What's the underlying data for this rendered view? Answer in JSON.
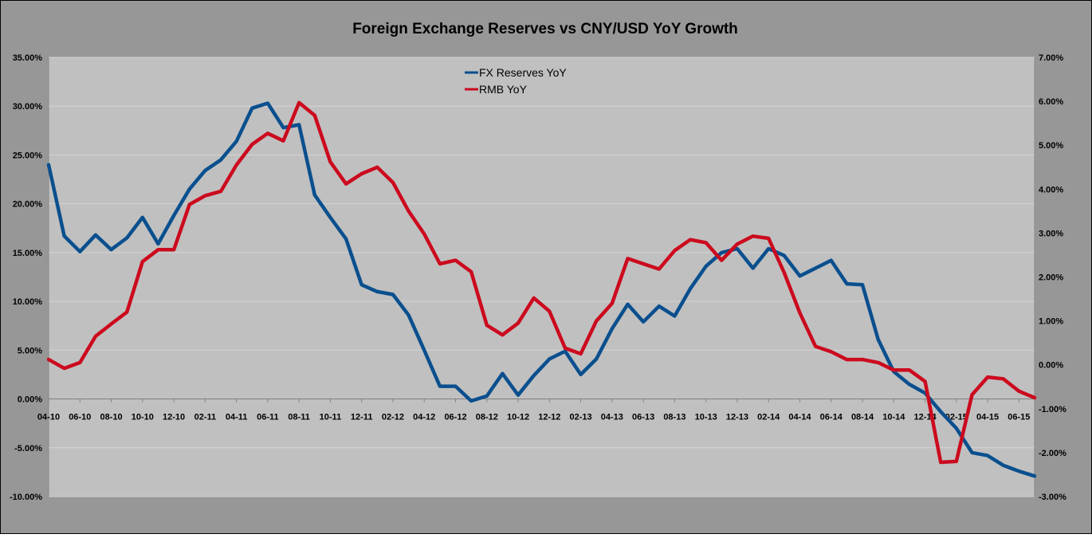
{
  "chart_data": {
    "type": "line",
    "title": "Foreign Exchange Reserves vs CNY/USD YoY Growth",
    "xlabel": "",
    "y_left": {
      "min": -10,
      "max": 35,
      "step": 5,
      "tick_labels": [
        "-10.00%",
        "-5.00%",
        "0.00%",
        "5.00%",
        "10.00%",
        "15.00%",
        "20.00%",
        "25.00%",
        "30.00%",
        "35.00%"
      ]
    },
    "y_right": {
      "min": -3,
      "max": 7,
      "step": 1,
      "tick_labels": [
        "-3.00%",
        "-2.00%",
        "-1.00%",
        "0.00%",
        "1.00%",
        "2.00%",
        "3.00%",
        "4.00%",
        "5.00%",
        "6.00%",
        "7.00%"
      ]
    },
    "x_tick_labels": [
      "04-10",
      "06-10",
      "08-10",
      "10-10",
      "12-10",
      "02-11",
      "04-11",
      "06-11",
      "08-11",
      "10-11",
      "12-11",
      "02-12",
      "04-12",
      "06-12",
      "08-12",
      "10-12",
      "12-12",
      "02-13",
      "04-13",
      "06-13",
      "08-13",
      "10-13",
      "12-13",
      "02-14",
      "04-14",
      "06-14",
      "08-14",
      "10-14",
      "12-14",
      "02-15",
      "04-15",
      "06-15"
    ],
    "x_tick_every": 2,
    "grid": true,
    "legend_position": "top-center",
    "series": [
      {
        "name": "FX Reserves YoY",
        "axis": "left",
        "color": "#0a4f8e",
        "values": [
          24.0,
          16.7,
          15.1,
          16.8,
          15.3,
          16.5,
          18.6,
          15.9,
          18.8,
          21.5,
          23.4,
          24.5,
          26.4,
          29.8,
          30.3,
          27.8,
          28.1,
          20.9,
          18.6,
          16.4,
          11.7,
          11.0,
          10.7,
          8.6,
          5.0,
          1.3,
          1.3,
          -0.2,
          0.3,
          2.6,
          0.4,
          2.4,
          4.1,
          4.9,
          2.5,
          4.1,
          7.2,
          9.7,
          7.9,
          9.5,
          8.5,
          11.3,
          13.6,
          15.0,
          15.4,
          13.4,
          15.4,
          14.7,
          12.6,
          13.4,
          14.2,
          11.8,
          11.7,
          6.1,
          2.8,
          1.5,
          0.6,
          -1.3,
          -3.0,
          -5.5,
          -5.8,
          -6.8,
          -7.4,
          -7.9
        ]
      },
      {
        "name": "RMB YoY",
        "axis": "right",
        "color": "#cc0a1e",
        "values": [
          0.12,
          -0.08,
          0.05,
          0.65,
          0.93,
          1.2,
          2.35,
          2.62,
          2.62,
          3.65,
          3.85,
          3.95,
          4.55,
          5.02,
          5.27,
          5.1,
          5.97,
          5.68,
          4.62,
          4.12,
          4.35,
          4.5,
          4.15,
          3.5,
          2.98,
          2.3,
          2.38,
          2.12,
          0.9,
          0.68,
          0.95,
          1.52,
          1.22,
          0.38,
          0.25,
          1.0,
          1.4,
          2.42,
          2.3,
          2.18,
          2.6,
          2.85,
          2.78,
          2.38,
          2.75,
          2.93,
          2.88,
          2.1,
          1.18,
          0.42,
          0.3,
          0.12,
          0.12,
          0.05,
          -0.12,
          -0.12,
          -0.38,
          -2.22,
          -2.2,
          -0.68,
          -0.28,
          -0.32,
          -0.6,
          -0.75
        ]
      }
    ]
  }
}
